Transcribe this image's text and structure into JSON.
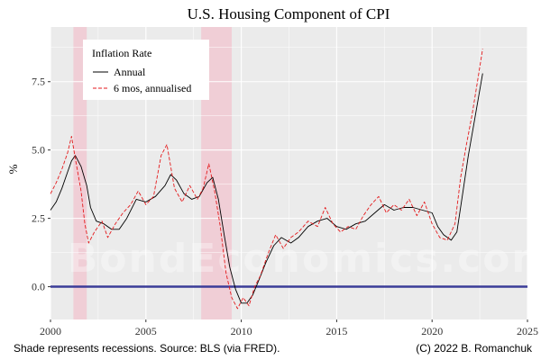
{
  "chart_data": {
    "type": "line",
    "title": "U.S. Housing Component of CPI",
    "xlabel": "",
    "ylabel": "%",
    "xlim": [
      2000,
      2025
    ],
    "ylim": [
      -1.2,
      9.5
    ],
    "x_ticks": [
      2000,
      2005,
      2010,
      2015,
      2020,
      2025
    ],
    "x_tick_labels": [
      "2000",
      "2005",
      "2010",
      "2015",
      "2020",
      "2025"
    ],
    "y_ticks": [
      0,
      2.5,
      5,
      7.5
    ],
    "y_tick_labels": [
      "0.0",
      "2.5",
      "5.0",
      "7.5"
    ],
    "legend": {
      "title": "Inflation Rate",
      "position": "top-left",
      "entries": [
        "Annual",
        "6 mos, annualised"
      ]
    },
    "recessions": [
      [
        2001.2,
        2001.9
      ],
      [
        2007.9,
        2009.5
      ]
    ],
    "zero_line": {
      "value": 0,
      "color": "#3b3c98"
    },
    "series": [
      {
        "name": "Annual",
        "color": "#000000",
        "dash": "solid",
        "points": [
          [
            2000.0,
            2.8
          ],
          [
            2000.3,
            3.1
          ],
          [
            2000.6,
            3.6
          ],
          [
            2000.9,
            4.2
          ],
          [
            2001.1,
            4.6
          ],
          [
            2001.3,
            4.8
          ],
          [
            2001.6,
            4.4
          ],
          [
            2001.9,
            3.7
          ],
          [
            2002.1,
            2.9
          ],
          [
            2002.4,
            2.4
          ],
          [
            2002.8,
            2.3
          ],
          [
            2003.2,
            2.1
          ],
          [
            2003.6,
            2.1
          ],
          [
            2004.0,
            2.5
          ],
          [
            2004.5,
            3.2
          ],
          [
            2005.0,
            3.1
          ],
          [
            2005.5,
            3.3
          ],
          [
            2006.0,
            3.7
          ],
          [
            2006.3,
            4.1
          ],
          [
            2006.6,
            3.9
          ],
          [
            2007.0,
            3.4
          ],
          [
            2007.4,
            3.2
          ],
          [
            2007.8,
            3.3
          ],
          [
            2008.2,
            3.8
          ],
          [
            2008.5,
            4.0
          ],
          [
            2008.8,
            3.2
          ],
          [
            2009.1,
            1.9
          ],
          [
            2009.4,
            0.7
          ],
          [
            2009.7,
            -0.1
          ],
          [
            2010.0,
            -0.6
          ],
          [
            2010.3,
            -0.6
          ],
          [
            2010.6,
            -0.3
          ],
          [
            2010.9,
            0.2
          ],
          [
            2011.3,
            0.9
          ],
          [
            2011.7,
            1.5
          ],
          [
            2012.1,
            1.8
          ],
          [
            2012.6,
            1.6
          ],
          [
            2013.0,
            1.8
          ],
          [
            2013.5,
            2.2
          ],
          [
            2014.0,
            2.4
          ],
          [
            2014.5,
            2.5
          ],
          [
            2015.0,
            2.2
          ],
          [
            2015.5,
            2.1
          ],
          [
            2016.0,
            2.3
          ],
          [
            2016.5,
            2.4
          ],
          [
            2017.0,
            2.7
          ],
          [
            2017.5,
            3.0
          ],
          [
            2018.0,
            2.8
          ],
          [
            2018.5,
            2.9
          ],
          [
            2019.0,
            2.9
          ],
          [
            2019.5,
            2.8
          ],
          [
            2020.0,
            2.7
          ],
          [
            2020.3,
            2.2
          ],
          [
            2020.6,
            1.9
          ],
          [
            2021.0,
            1.7
          ],
          [
            2021.3,
            2.0
          ],
          [
            2021.6,
            3.4
          ],
          [
            2021.9,
            4.8
          ],
          [
            2022.2,
            6.0
          ],
          [
            2022.5,
            7.2
          ],
          [
            2022.65,
            7.8
          ]
        ]
      },
      {
        "name": "6 mos, annualised",
        "color": "#e41a1c",
        "dash": "dashed",
        "points": [
          [
            2000.0,
            3.4
          ],
          [
            2000.3,
            3.8
          ],
          [
            2000.6,
            4.3
          ],
          [
            2000.9,
            4.9
          ],
          [
            2001.1,
            5.5
          ],
          [
            2001.3,
            4.7
          ],
          [
            2001.6,
            3.5
          ],
          [
            2001.8,
            2.3
          ],
          [
            2002.0,
            1.6
          ],
          [
            2002.3,
            2.0
          ],
          [
            2002.7,
            2.4
          ],
          [
            2003.0,
            1.8
          ],
          [
            2003.4,
            2.3
          ],
          [
            2003.8,
            2.7
          ],
          [
            2004.2,
            3.0
          ],
          [
            2004.6,
            3.5
          ],
          [
            2005.0,
            3.0
          ],
          [
            2005.4,
            3.3
          ],
          [
            2005.8,
            4.8
          ],
          [
            2006.1,
            5.2
          ],
          [
            2006.5,
            3.6
          ],
          [
            2006.9,
            3.1
          ],
          [
            2007.3,
            3.7
          ],
          [
            2007.7,
            3.2
          ],
          [
            2008.0,
            3.6
          ],
          [
            2008.3,
            4.5
          ],
          [
            2008.6,
            3.5
          ],
          [
            2008.9,
            2.2
          ],
          [
            2009.2,
            0.5
          ],
          [
            2009.5,
            -0.4
          ],
          [
            2009.8,
            -0.8
          ],
          [
            2010.1,
            -0.4
          ],
          [
            2010.4,
            -0.7
          ],
          [
            2010.7,
            0.0
          ],
          [
            2011.0,
            0.4
          ],
          [
            2011.4,
            1.2
          ],
          [
            2011.8,
            1.9
          ],
          [
            2012.2,
            1.4
          ],
          [
            2012.6,
            1.8
          ],
          [
            2013.0,
            2.0
          ],
          [
            2013.5,
            2.4
          ],
          [
            2014.0,
            2.2
          ],
          [
            2014.4,
            2.9
          ],
          [
            2014.8,
            2.3
          ],
          [
            2015.2,
            2.0
          ],
          [
            2015.6,
            2.2
          ],
          [
            2016.0,
            2.1
          ],
          [
            2016.4,
            2.6
          ],
          [
            2016.8,
            3.0
          ],
          [
            2017.2,
            3.3
          ],
          [
            2017.6,
            2.7
          ],
          [
            2018.0,
            3.0
          ],
          [
            2018.4,
            2.8
          ],
          [
            2018.8,
            3.2
          ],
          [
            2019.2,
            2.6
          ],
          [
            2019.6,
            3.1
          ],
          [
            2020.0,
            2.3
          ],
          [
            2020.4,
            1.8
          ],
          [
            2020.8,
            1.7
          ],
          [
            2021.2,
            2.3
          ],
          [
            2021.5,
            4.0
          ],
          [
            2021.8,
            5.2
          ],
          [
            2022.1,
            6.3
          ],
          [
            2022.4,
            7.6
          ],
          [
            2022.65,
            8.7
          ]
        ]
      }
    ]
  },
  "watermark": "BondEconomics.com",
  "footer_left": "Shade represents recessions. Source: BLS (via FRED).",
  "footer_right": "(C) 2022 B. Romanchuk"
}
